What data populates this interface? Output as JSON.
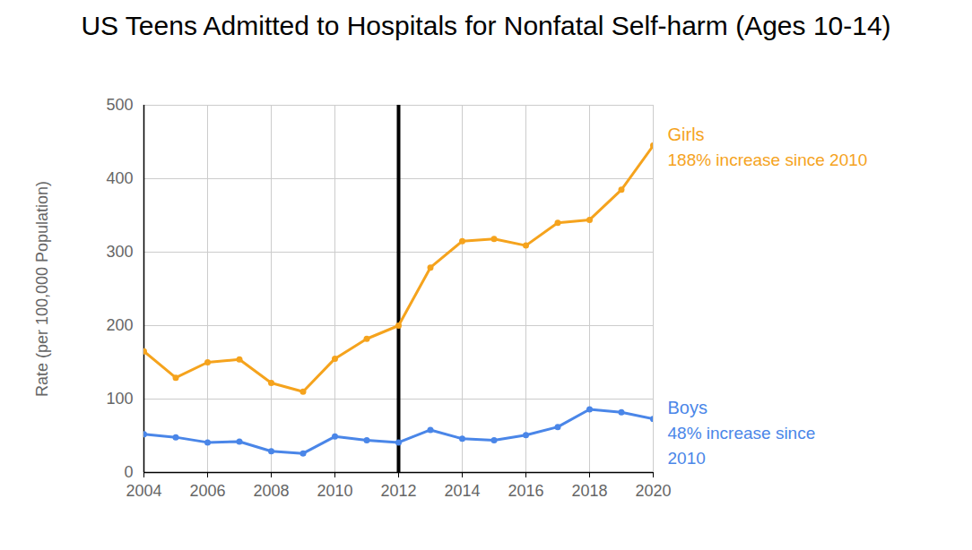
{
  "chart_data": {
    "type": "line",
    "title": "US Teens Admitted to Hospitals for Nonfatal Self-harm (Ages 10-14)",
    "y_label": "Rate (per 100,000 Population)",
    "x": [
      2004,
      2005,
      2006,
      2007,
      2008,
      2009,
      2010,
      2011,
      2012,
      2013,
      2014,
      2015,
      2016,
      2017,
      2018,
      2019,
      2020
    ],
    "series": [
      {
        "name": "Girls",
        "color": "#f5a31d",
        "note": "188% increase since 2010",
        "values": [
          165,
          129,
          150,
          154,
          122,
          110,
          155,
          182,
          200,
          279,
          315,
          318,
          309,
          340,
          344,
          385,
          445
        ]
      },
      {
        "name": "Boys",
        "color": "#4a86e8",
        "note": "48% increase since\n2010",
        "values": [
          52,
          48,
          41,
          42,
          29,
          26,
          49,
          44,
          41,
          58,
          46,
          44,
          51,
          62,
          86,
          82,
          73
        ]
      }
    ],
    "reference_line_x": 2012,
    "xlim": [
      2004,
      2020
    ],
    "xticks": [
      2004,
      2006,
      2008,
      2010,
      2012,
      2014,
      2016,
      2018,
      2020
    ],
    "ylim": [
      0,
      500
    ],
    "yticks": [
      0,
      100,
      200,
      300,
      400,
      500
    ],
    "grid": true,
    "marker": "circle"
  }
}
